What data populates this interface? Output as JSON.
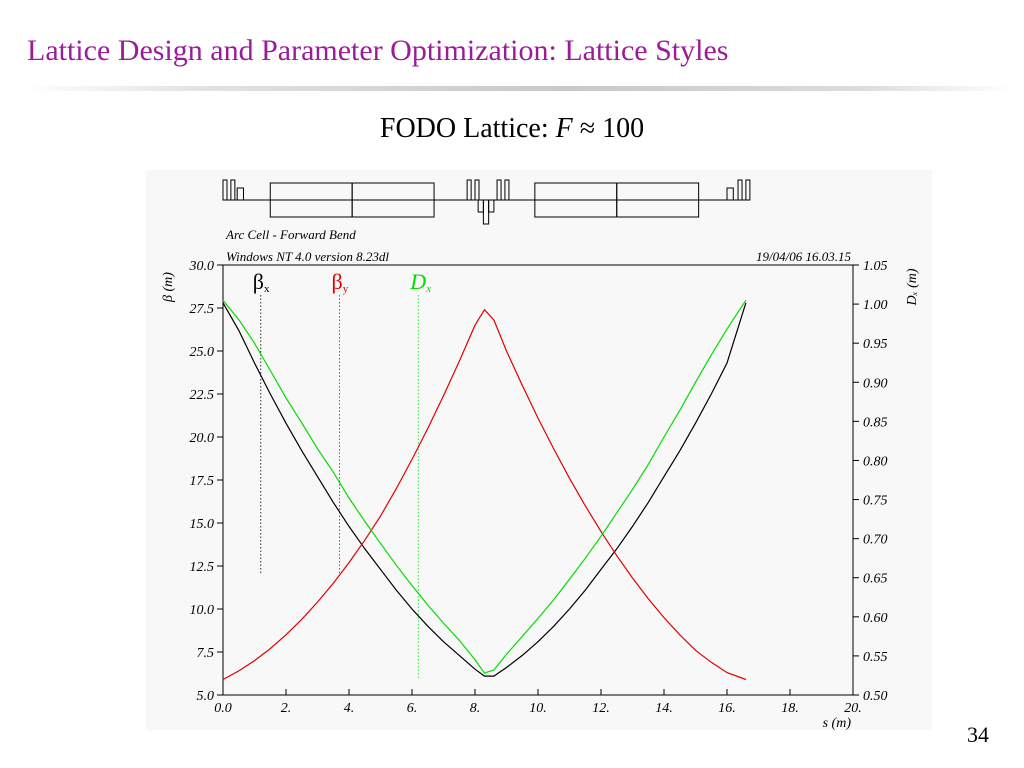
{
  "slide": {
    "title": "Lattice Design and Parameter Optimization: Lattice Styles",
    "subtitle_prefix": "FODO Lattice: ",
    "subtitle_var": "F",
    "subtitle_suffix": " ≈ 100",
    "page_number": "34"
  },
  "colors": {
    "title": "#9b1c9b",
    "beta_x": "#000000",
    "beta_y": "#e00000",
    "dispersion": "#00dd00"
  },
  "chart_data": {
    "type": "line",
    "header_left_1": "Arc Cell - Forward Bend",
    "header_left_2": "Windows NT 4.0 version 8.23dl",
    "header_right": "19/04/06  16.03.15",
    "xlabel": "s (m)",
    "ylabel_left": "β (m)",
    "ylabel_right": "Dₓ (m)",
    "xlim": [
      0,
      20
    ],
    "ylim_left": [
      5.0,
      30.0
    ],
    "ylim_right": [
      0.5,
      1.05
    ],
    "x_ticks": [
      "0.0",
      "2.",
      "4.",
      "6.",
      "8.",
      "10.",
      "12.",
      "14.",
      "16.",
      "18.",
      "20."
    ],
    "y_ticks_left": [
      "5.0",
      "7.5",
      "10.0",
      "12.5",
      "15.0",
      "17.5",
      "20.0",
      "22.5",
      "25.0",
      "27.5",
      "30.0"
    ],
    "y_ticks_right": [
      "0.50",
      "0.55",
      "0.60",
      "0.65",
      "0.70",
      "0.75",
      "0.80",
      "0.85",
      "0.90",
      "0.95",
      "1.00",
      "1.05"
    ],
    "legend": [
      {
        "main": "β",
        "sub": "x",
        "marker_x": 1.2
      },
      {
        "main": "β",
        "sub": "y",
        "marker_x": 3.7
      },
      {
        "main": "D",
        "sub": "x",
        "marker_x": 6.2
      }
    ],
    "series": [
      {
        "name": "βx",
        "axis": "left",
        "x": [
          0,
          0.5,
          1,
          1.5,
          2,
          2.5,
          3,
          3.5,
          4,
          4.5,
          5,
          5.5,
          6,
          6.5,
          7,
          7.5,
          8,
          8.3,
          8.6,
          9,
          9.5,
          10,
          10.5,
          11,
          11.5,
          12,
          12.5,
          13,
          13.5,
          14,
          14.5,
          15,
          15.5,
          16,
          16.6
        ],
        "y": [
          27.8,
          26.2,
          24.3,
          22.5,
          20.8,
          19.2,
          17.7,
          16.2,
          14.8,
          13.5,
          12.3,
          11.1,
          10.0,
          9.0,
          8.1,
          7.3,
          6.5,
          6.1,
          6.1,
          6.6,
          7.3,
          8.1,
          9.0,
          10.0,
          11.1,
          12.3,
          13.5,
          14.8,
          16.2,
          17.7,
          19.2,
          20.8,
          22.5,
          24.3,
          27.8
        ]
      },
      {
        "name": "βy",
        "axis": "left",
        "x": [
          0,
          0.5,
          1,
          1.5,
          2,
          2.5,
          3,
          3.5,
          4,
          4.5,
          5,
          5.5,
          6,
          6.5,
          7,
          7.5,
          8,
          8.3,
          8.6,
          9,
          9.5,
          10,
          10.5,
          11,
          11.5,
          12,
          12.5,
          13,
          13.5,
          14,
          14.5,
          15,
          15.5,
          16,
          16.6
        ],
        "y": [
          5.9,
          6.4,
          7.0,
          7.7,
          8.5,
          9.4,
          10.4,
          11.5,
          12.7,
          14.0,
          15.4,
          17.0,
          18.7,
          20.5,
          22.4,
          24.4,
          26.5,
          27.4,
          26.8,
          25.0,
          23.0,
          21.1,
          19.3,
          17.6,
          16.0,
          14.5,
          13.1,
          11.8,
          10.6,
          9.5,
          8.5,
          7.6,
          6.9,
          6.3,
          5.9
        ]
      },
      {
        "name": "Dx",
        "axis": "right",
        "x": [
          0,
          0.5,
          1,
          1.5,
          2,
          2.5,
          3,
          3.5,
          4,
          4.5,
          5,
          5.5,
          6,
          6.5,
          7,
          7.5,
          8,
          8.3,
          8.6,
          9,
          9.5,
          10,
          10.5,
          11,
          11.5,
          12,
          12.5,
          13,
          13.5,
          14,
          14.5,
          15,
          15.5,
          16,
          16.6
        ],
        "y": [
          1.005,
          0.98,
          0.95,
          0.915,
          0.88,
          0.848,
          0.815,
          0.785,
          0.752,
          0.722,
          0.694,
          0.666,
          0.64,
          0.615,
          0.592,
          0.57,
          0.545,
          0.528,
          0.532,
          0.552,
          0.575,
          0.598,
          0.622,
          0.648,
          0.675,
          0.703,
          0.733,
          0.763,
          0.795,
          0.83,
          0.864,
          0.9,
          0.935,
          0.968,
          1.005
        ]
      }
    ],
    "lattice_schematic": {
      "elements": [
        {
          "type": "marker",
          "s": 0.0
        },
        {
          "type": "marker",
          "s": 0.25
        },
        {
          "type": "sextupole",
          "s": 0.45,
          "len": 0.2
        },
        {
          "type": "dipole",
          "s": 1.5,
          "len": 2.6
        },
        {
          "type": "dipole",
          "s": 4.1,
          "len": 2.6
        },
        {
          "type": "marker",
          "s": 7.75
        },
        {
          "type": "marker",
          "s": 8.0
        },
        {
          "type": "quadrupole_defocusing",
          "s": 8.1,
          "len": 0.5
        },
        {
          "type": "marker",
          "s": 8.7
        },
        {
          "type": "marker",
          "s": 8.95
        },
        {
          "type": "dipole",
          "s": 9.9,
          "len": 2.6
        },
        {
          "type": "dipole",
          "s": 12.5,
          "len": 2.6
        },
        {
          "type": "sextupole",
          "s": 16.0,
          "len": 0.2
        },
        {
          "type": "marker",
          "s": 16.35
        },
        {
          "type": "marker",
          "s": 16.6
        }
      ]
    }
  }
}
